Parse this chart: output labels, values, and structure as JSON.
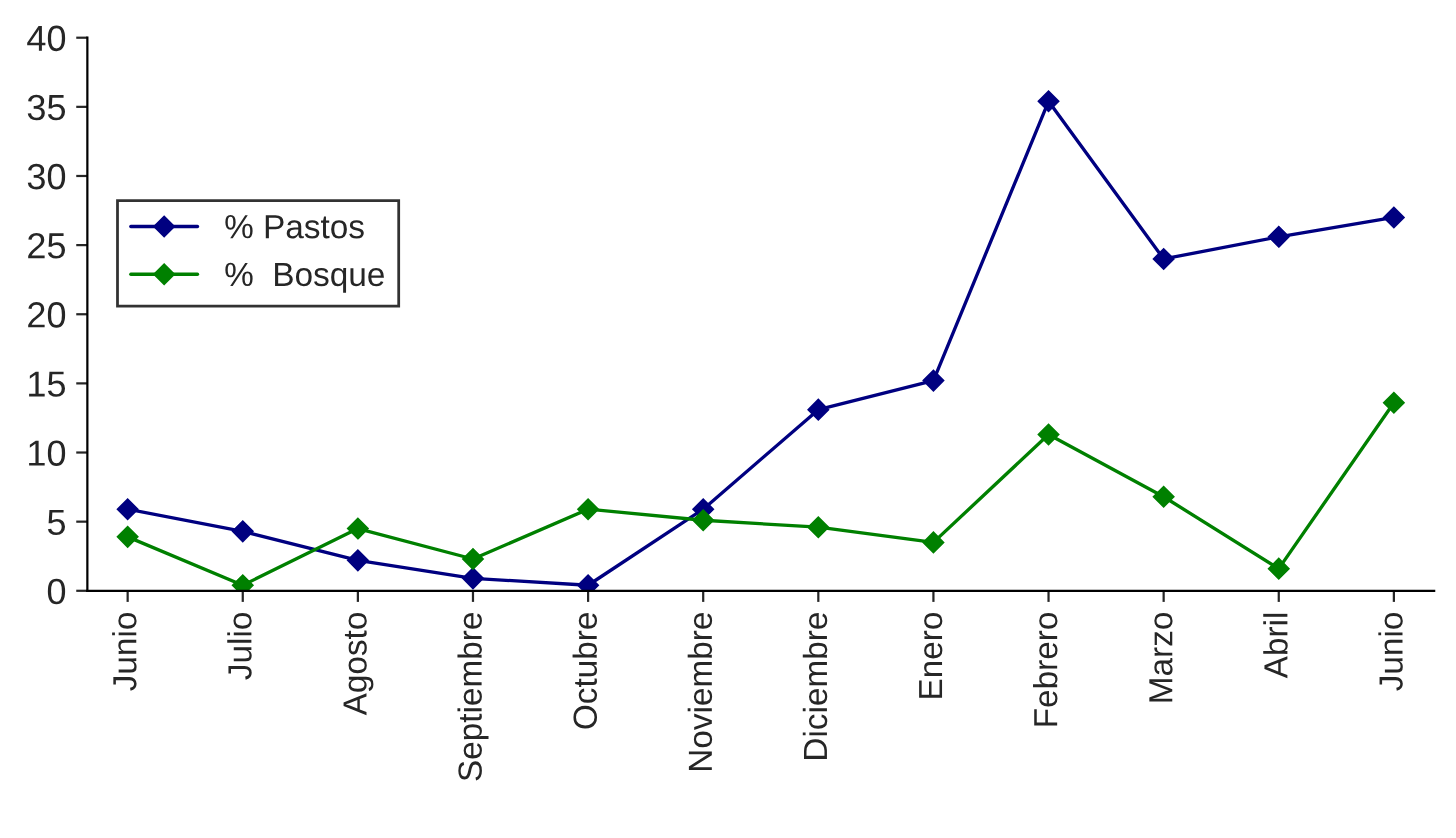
{
  "chart_data": {
    "type": "line",
    "categories": [
      "Junio",
      "Julio",
      "Agosto",
      "Septiembre",
      "Octubre",
      "Noviembre",
      "Diciembre",
      "Enero",
      "Febrero",
      "Marzo",
      "Abril",
      "Junio"
    ],
    "series": [
      {
        "name": "% Pastos",
        "color": "#000080",
        "values": [
          5.9,
          4.3,
          2.2,
          0.9,
          0.4,
          5.9,
          13.1,
          15.2,
          35.4,
          24.0,
          25.6,
          27.0
        ]
      },
      {
        "name": "%  Bosque",
        "color": "#008000",
        "values": [
          3.9,
          0.4,
          4.5,
          2.3,
          5.9,
          5.1,
          4.6,
          3.5,
          11.3,
          6.8,
          1.6,
          13.6
        ]
      }
    ],
    "ylim": [
      0,
      40
    ],
    "yticks": [
      0,
      5,
      10,
      15,
      20,
      25,
      30,
      35,
      40
    ],
    "grid": false,
    "legend": "left",
    "marker": "diamond",
    "line_style": "solid"
  }
}
